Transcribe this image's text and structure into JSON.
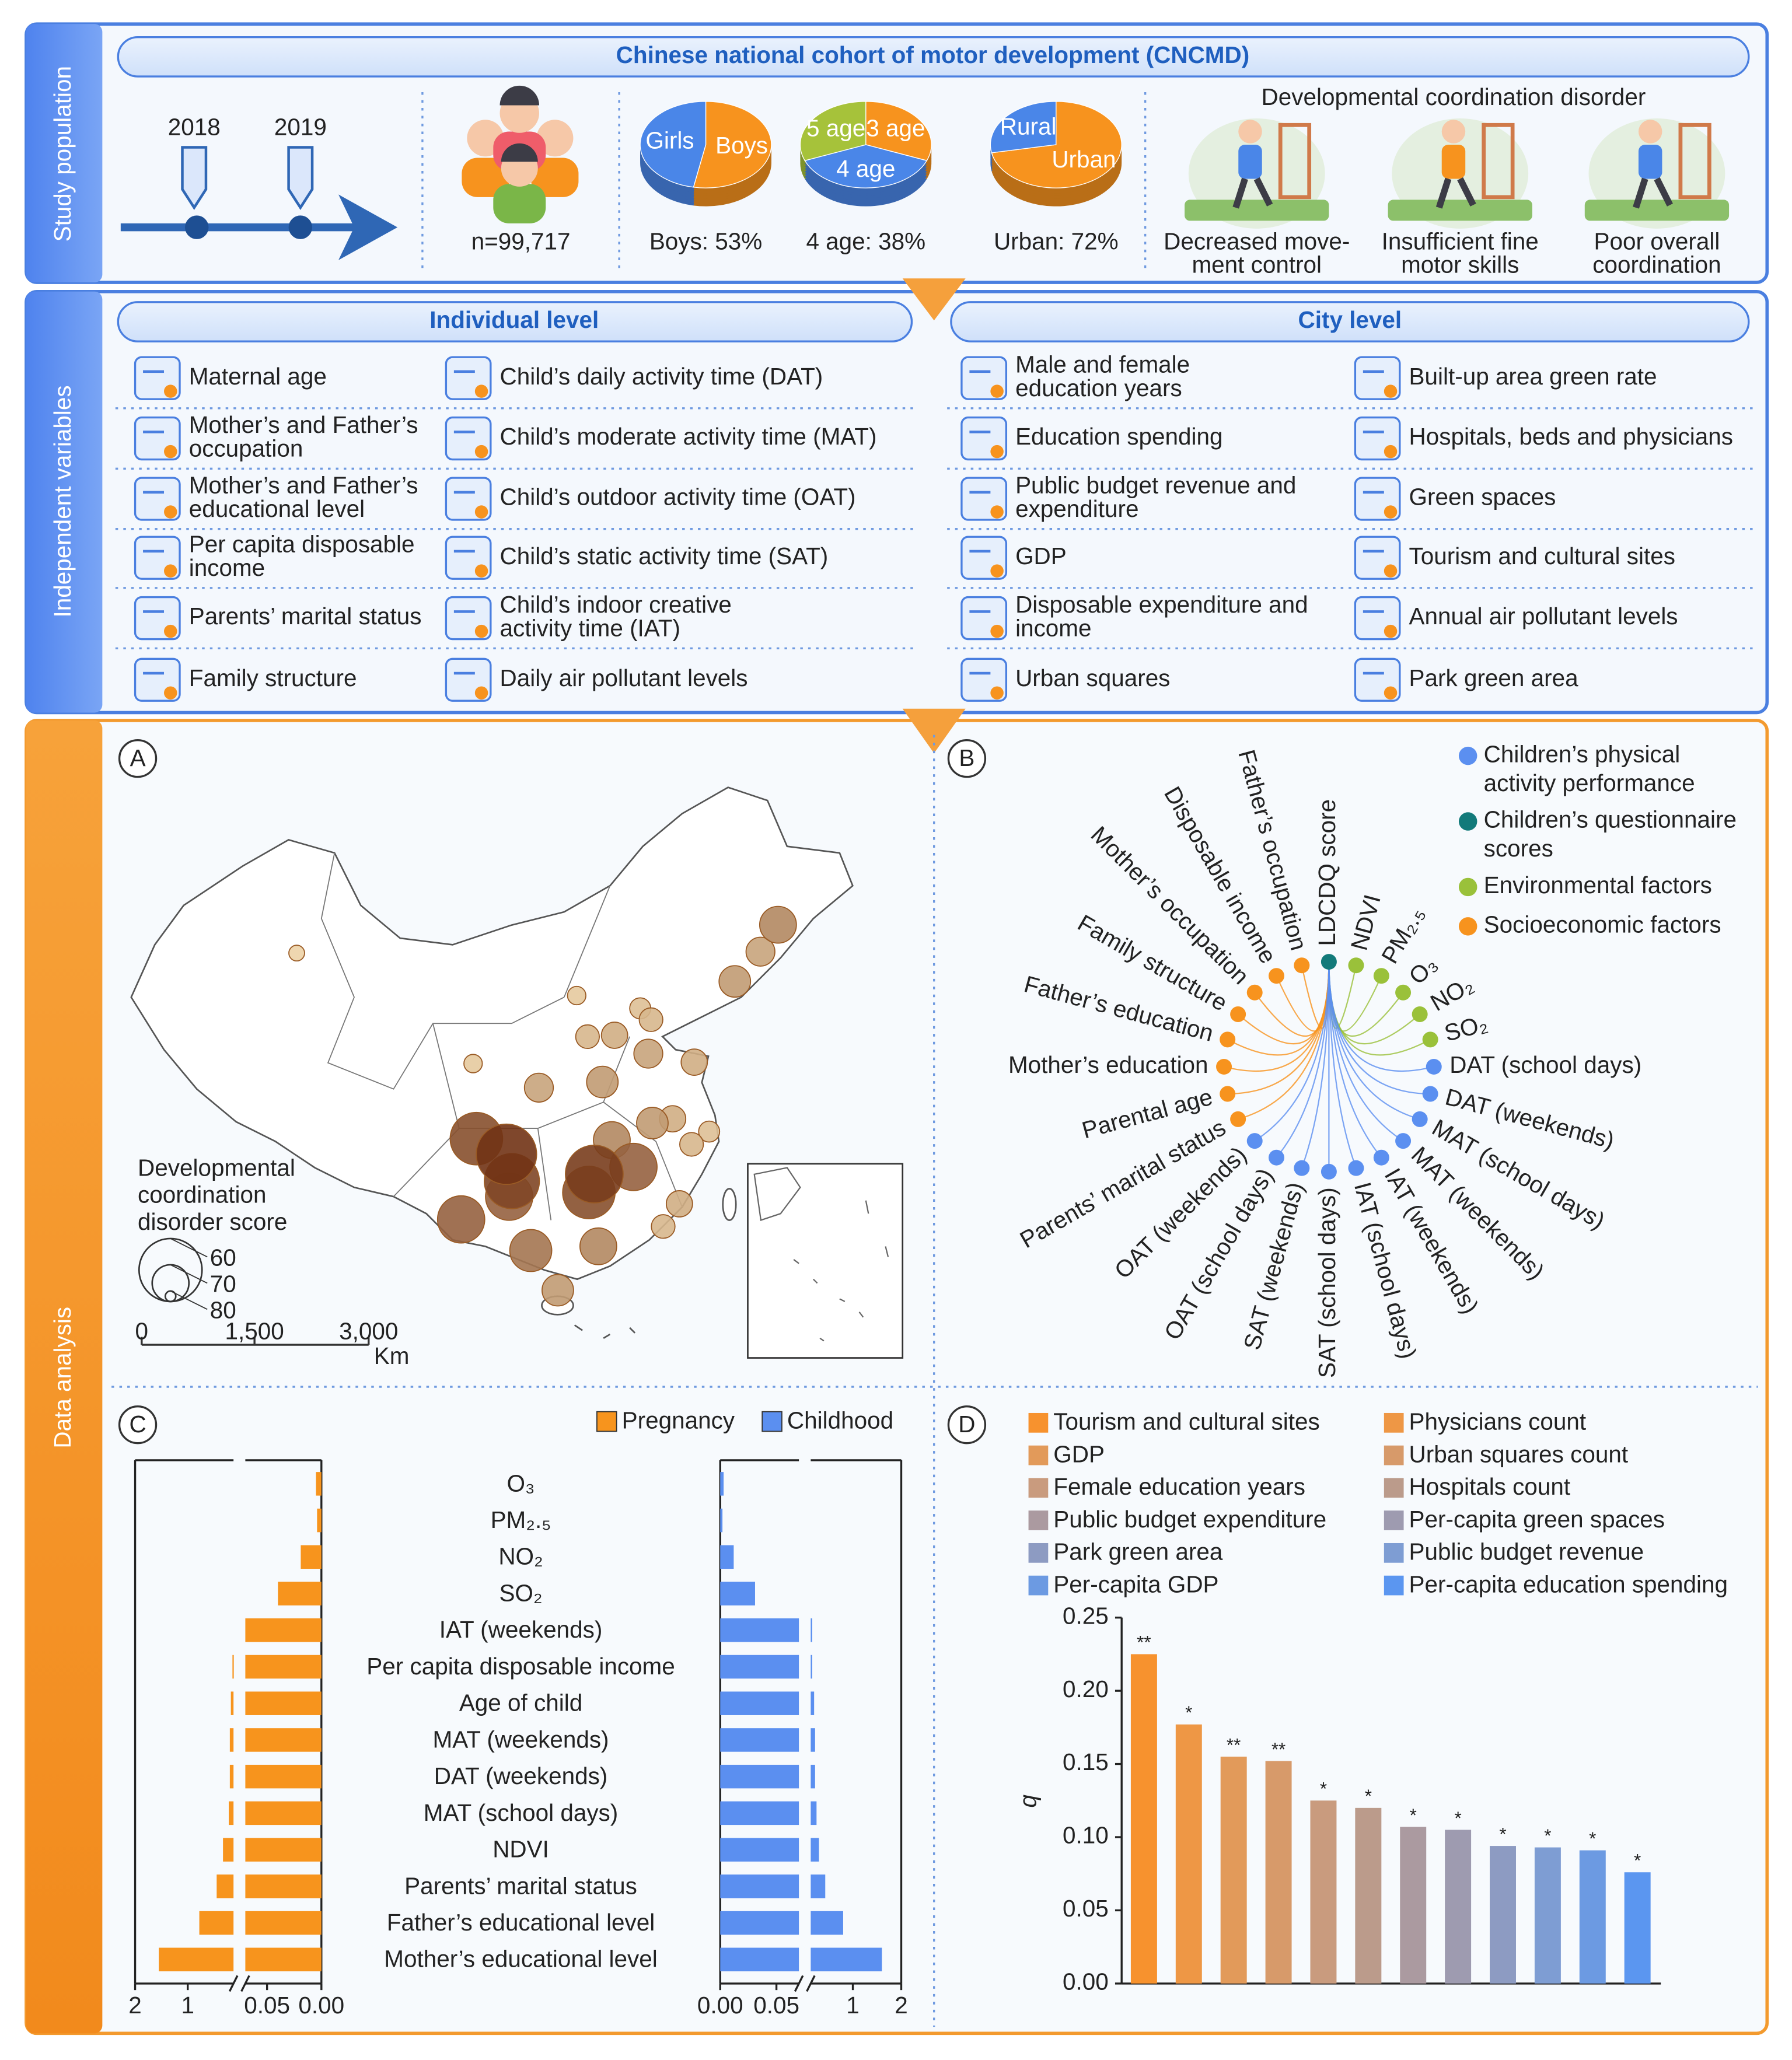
{
  "sections": [
    "Study population",
    "Independent variables",
    "Data analysis"
  ],
  "study": {
    "title": "Chinese national cohort of motor development (CNCMD)",
    "years": [
      "2018",
      "2019"
    ],
    "sample": "n=99,717",
    "dcd_title": "Developmental coordination disorder",
    "dcd_items": [
      [
        "Decreased move-",
        "ment control"
      ],
      [
        "Insufficient fine",
        "motor skills"
      ],
      [
        "Poor overall",
        "coordination"
      ]
    ]
  },
  "variables": {
    "individual": {
      "title": "Individual level",
      "columns": [
        [
          "Maternal age",
          [
            "Mother’s and Father’s",
            "occupation"
          ],
          [
            "Mother’s and Father’s",
            "educational level"
          ],
          [
            "Per capita disposable",
            "income"
          ],
          "Parents’ marital status",
          "Family structure"
        ],
        [
          "Child’s daily activity time (DAT)",
          "Child’s moderate activity time (MAT)",
          "Child’s outdoor activity time (OAT)",
          "Child’s static activity time (SAT)",
          [
            "Child’s indoor creative",
            "activity time (IAT)"
          ],
          "Daily air pollutant levels"
        ]
      ]
    },
    "city": {
      "title": "City level",
      "columns": [
        [
          [
            "Male and female",
            "education years"
          ],
          "Education spending",
          [
            "Public budget revenue and",
            "expenditure"
          ],
          "GDP",
          [
            "Disposable expenditure and",
            "income"
          ],
          "Urban squares"
        ],
        [
          "Built-up area green rate",
          "Hospitals, beds and physicians",
          "Green spaces",
          "Tourism and cultural sites",
          "Annual air pollutant levels",
          "Park green area"
        ]
      ]
    }
  },
  "chart_data": [
    {
      "type": "pie",
      "categories": [
        "Boys",
        "Girls"
      ],
      "values": [
        53,
        47
      ],
      "colors": [
        "#f7931e",
        "#4a86e8"
      ],
      "caption": "Boys: 53%"
    },
    {
      "type": "pie",
      "categories": [
        "3 age",
        "4 age",
        "5 age"
      ],
      "values": [
        31,
        38,
        31
      ],
      "colors": [
        "#f7931e",
        "#4a86e8",
        "#a6c23a"
      ],
      "caption": "4 age: 38%"
    },
    {
      "type": "pie",
      "categories": [
        "Urban",
        "Rural"
      ],
      "values": [
        72,
        28
      ],
      "colors": [
        "#f7931e",
        "#4a86e8"
      ],
      "caption": "Urban: 72%"
    },
    {
      "type": "map",
      "label": "A",
      "legend_title": [
        "Developmental",
        "coordination",
        "disorder score"
      ],
      "size_legend": [
        60,
        70,
        80
      ],
      "scale_bar": [
        "0",
        "1,500",
        "3,000"
      ],
      "unit": "Km",
      "points": [
        {
          "lon": 87.6,
          "lat": 43.8,
          "score": 78
        },
        {
          "lon": 103.8,
          "lat": 36.0,
          "score": 77
        },
        {
          "lon": 111.7,
          "lat": 40.8,
          "score": 77
        },
        {
          "lon": 116.4,
          "lat": 39.9,
          "score": 76
        },
        {
          "lon": 117.2,
          "lat": 39.1,
          "score": 75
        },
        {
          "lon": 114.5,
          "lat": 38.0,
          "score": 74
        },
        {
          "lon": 112.5,
          "lat": 37.9,
          "score": 75
        },
        {
          "lon": 123.4,
          "lat": 41.8,
          "score": 72
        },
        {
          "lon": 125.3,
          "lat": 43.9,
          "score": 73
        },
        {
          "lon": 126.6,
          "lat": 45.8,
          "score": 70
        },
        {
          "lon": 117.0,
          "lat": 36.7,
          "score": 73
        },
        {
          "lon": 120.4,
          "lat": 36.1,
          "score": 74
        },
        {
          "lon": 108.9,
          "lat": 34.3,
          "score": 73
        },
        {
          "lon": 113.6,
          "lat": 34.7,
          "score": 72
        },
        {
          "lon": 118.8,
          "lat": 32.1,
          "score": 74
        },
        {
          "lon": 121.5,
          "lat": 31.2,
          "score": 76
        },
        {
          "lon": 120.2,
          "lat": 30.3,
          "score": 75
        },
        {
          "lon": 117.3,
          "lat": 31.8,
          "score": 72
        },
        {
          "lon": 114.3,
          "lat": 30.6,
          "score": 70
        },
        {
          "lon": 119.3,
          "lat": 26.1,
          "score": 74
        },
        {
          "lon": 118.1,
          "lat": 24.5,
          "score": 75
        },
        {
          "lon": 113.3,
          "lat": 23.1,
          "score": 70
        },
        {
          "lon": 110.3,
          "lat": 20.0,
          "score": 72
        },
        {
          "lon": 108.3,
          "lat": 22.8,
          "score": 68
        },
        {
          "lon": 102.7,
          "lat": 25.0,
          "score": 66
        },
        {
          "lon": 115.9,
          "lat": 28.7,
          "score": 66
        },
        {
          "lon": 112.6,
          "lat": 26.9,
          "score": 64
        },
        {
          "lon": 106.7,
          "lat": 26.6,
          "score": 66
        },
        {
          "lon": 104.1,
          "lat": 30.7,
          "score": 64
        },
        {
          "lon": 106.9,
          "lat": 27.7,
          "score": 63
        },
        {
          "lon": 113.0,
          "lat": 28.2,
          "score": 62
        },
        {
          "lon": 106.5,
          "lat": 29.6,
          "score": 61
        }
      ]
    },
    {
      "type": "network",
      "label": "B",
      "groups": [
        {
          "name": [
            "Children’s physical",
            "activity performance"
          ],
          "color": "#5b8ff0"
        },
        {
          "name": [
            "Children’s questionnaire",
            "scores"
          ],
          "color": "#127a7a"
        },
        {
          "name": [
            "Environmental factors"
          ],
          "color": "#9ac13a"
        },
        {
          "name": [
            "Socioeconomic factors"
          ],
          "color": "#f7931e"
        }
      ],
      "nodes": [
        {
          "label": "Parents’ marital status",
          "group": 3
        },
        {
          "label": "Parental age",
          "group": 3
        },
        {
          "label": "Mother’s education",
          "group": 3
        },
        {
          "label": "Father’s education",
          "group": 3
        },
        {
          "label": "Family structure",
          "group": 3
        },
        {
          "label": "Mother’s occupation",
          "group": 3
        },
        {
          "label": "Disposable income",
          "group": 3
        },
        {
          "label": "Father’s occupation",
          "group": 3
        },
        {
          "label": "LDCDQ score",
          "group": 1
        },
        {
          "label": "NDVI",
          "group": 2
        },
        {
          "label": "PM₂.₅",
          "group": 2
        },
        {
          "label": "O₃",
          "group": 2
        },
        {
          "label": "NO₂",
          "group": 2
        },
        {
          "label": "SO₂",
          "group": 2
        },
        {
          "label": "DAT (school days)",
          "group": 0
        },
        {
          "label": "DAT (weekends)",
          "group": 0
        },
        {
          "label": "MAT (school days)",
          "group": 0
        },
        {
          "label": "MAT (weekends)",
          "group": 0
        },
        {
          "label": "IAT (weekends)",
          "group": 0
        },
        {
          "label": "IAT (school days)",
          "group": 0
        },
        {
          "label": "SAT (school days)",
          "group": 0
        },
        {
          "label": "SAT (weekends)",
          "group": 0
        },
        {
          "label": "OAT (school days)",
          "group": 0
        },
        {
          "label": "OAT (weekends)",
          "group": 0
        }
      ]
    },
    {
      "type": "barh",
      "label": "C",
      "categories": [
        "O₃",
        "PM₂.₅",
        "NO₂",
        "SO₂",
        "IAT (weekends)",
        "Per capita disposable income",
        "Age of child",
        "MAT (weekends)",
        "DAT (weekends)",
        "MAT (school days)",
        "NDVI",
        "Parents’ marital status",
        "Father’s educational level",
        "Mother’s educational level"
      ],
      "series": [
        {
          "name": "Pregnancy",
          "color": "#f7941d",
          "values": [
            0.005,
            0.004,
            0.019,
            0.04,
            0.1,
            0.15,
            0.18,
            0.2,
            0.2,
            0.22,
            0.33,
            0.45,
            0.78,
            1.55
          ]
        },
        {
          "name": "Childhood",
          "color": "#5b8ff0",
          "values": [
            0.003,
            0.002,
            0.012,
            0.031,
            0.16,
            0.16,
            0.2,
            0.22,
            0.22,
            0.25,
            0.3,
            0.43,
            0.8,
            1.6
          ]
        }
      ],
      "xlim": [
        0,
        2
      ],
      "xbreak": [
        0.07,
        0.13
      ],
      "xticks": [
        {
          "value": 0,
          "label": "0.00"
        },
        0.05,
        1,
        2
      ]
    },
    {
      "type": "bar",
      "label": "D",
      "ylabel": "q",
      "categories": [
        "Tourism and cultural sites",
        "Physicians count",
        "GDP",
        "Urban squares count",
        "Female education years",
        "Hospitals count",
        "Public budget expenditure",
        "Per-capita green spaces",
        "Park green area",
        "Public budget revenue",
        "Per-capita GDP",
        "Per-capita education spending"
      ],
      "values": [
        0.225,
        0.177,
        0.155,
        0.152,
        0.125,
        0.12,
        0.107,
        0.105,
        0.094,
        0.093,
        0.091,
        0.076
      ],
      "significance": [
        "**",
        "*",
        "**",
        "**",
        "*",
        "*",
        "*",
        "*",
        "*",
        "*",
        "*",
        "*"
      ],
      "colors": [
        "#f7922e",
        "#ee9745",
        "#e29a5a",
        "#d79a6a",
        "#c99b7e",
        "#bb9b8b",
        "#ab9aa0",
        "#9e9bb0",
        "#8d9bc2",
        "#7e9dd3",
        "#6c9ae2",
        "#5b96f0"
      ],
      "ylim": [
        0,
        0.25
      ],
      "yticks": [
        {
          "value": 0,
          "label": "0.00"
        },
        0.05,
        {
          "value": 0.1,
          "label": "0.10"
        },
        0.15,
        {
          "value": 0.2,
          "label": "0.20"
        },
        0.25
      ]
    }
  ]
}
